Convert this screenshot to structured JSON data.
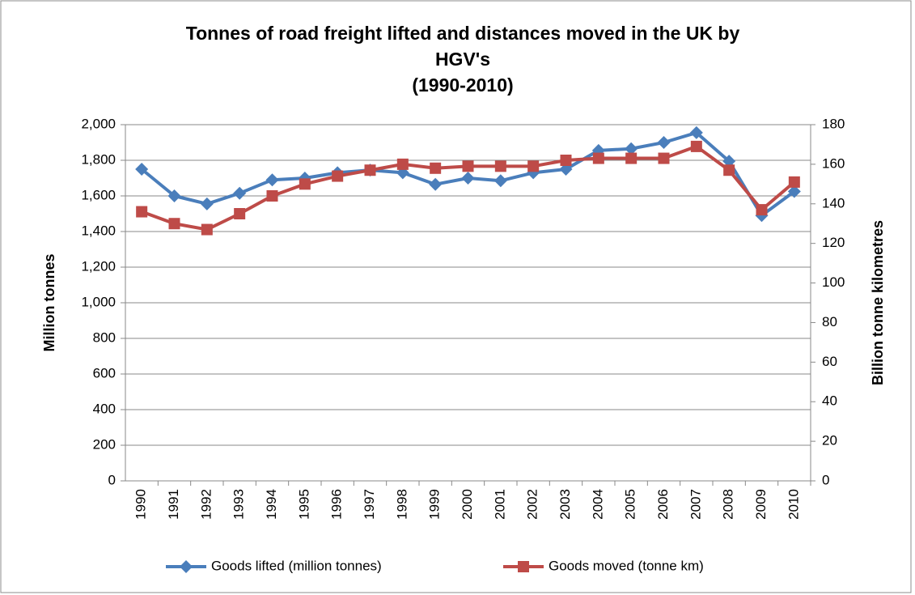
{
  "chart_data": {
    "type": "line",
    "title": [
      "Tonnes of road freight lifted and distances moved in the UK by",
      "HGV's",
      "(1990-2010)"
    ],
    "y_label": "Million tonnes",
    "y2_label": "Billion tonne kilometres",
    "categories": [
      "1990",
      "1991",
      "1992",
      "1993",
      "1994",
      "1995",
      "1996",
      "1997",
      "1998",
      "1999",
      "2000",
      "2001",
      "2002",
      "2003",
      "2004",
      "2005",
      "2006",
      "2007",
      "2008",
      "2009",
      "2010"
    ],
    "series": [
      {
        "name": "Goods lifted (million tonnes)",
        "color": "#4a7ebb",
        "marker": "diamond",
        "values": [
          1750,
          1600,
          1555,
          1615,
          1690,
          1700,
          1730,
          1745,
          1730,
          1665,
          1700,
          1685,
          1730,
          1750,
          1855,
          1865,
          1900,
          1955,
          1795,
          1490,
          1625
        ]
      },
      {
        "name": "Goods moved (tonne km)",
        "color": "#be4b48",
        "marker": "square",
        "axis": "y2",
        "values": [
          136,
          130,
          127,
          135,
          144,
          150,
          154,
          157,
          160,
          158,
          159,
          159,
          159,
          162,
          163,
          163,
          163,
          169,
          157,
          137,
          151
        ]
      }
    ],
    "ylim": [
      0,
      2000
    ],
    "yticks": [
      0,
      200,
      400,
      600,
      800,
      {
        "value": 1000,
        "label": "1,000"
      },
      {
        "value": 1200,
        "label": "1,200"
      },
      {
        "value": 1400,
        "label": "1,400"
      },
      {
        "value": 1600,
        "label": "1,600"
      },
      {
        "value": 1800,
        "label": "1,800"
      },
      {
        "value": 2000,
        "label": "2,000"
      }
    ],
    "y2lim": [
      0,
      180
    ],
    "y2ticks": [
      0,
      20,
      40,
      60,
      80,
      100,
      120,
      140,
      160,
      180
    ],
    "grid": true,
    "legend": "bottom"
  }
}
